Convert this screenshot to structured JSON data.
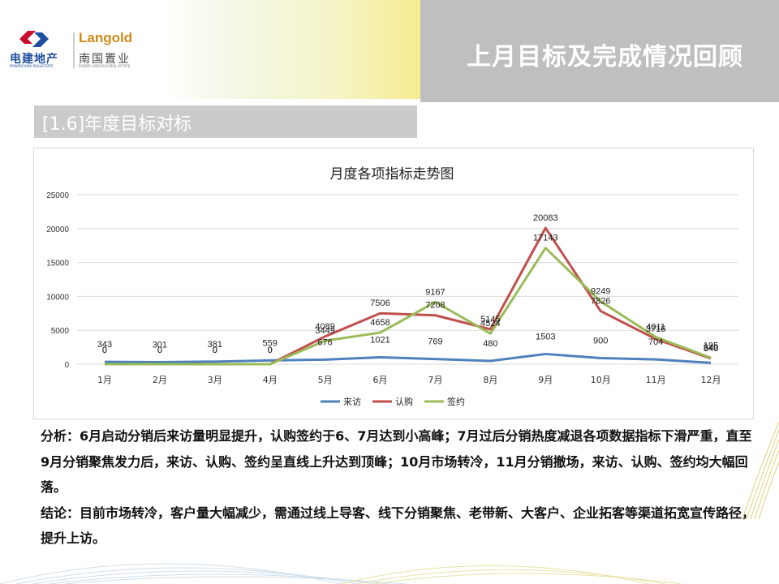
{
  "header": {
    "title": "上月目标及完成情况回顾",
    "logo": {
      "brand_left_cn": "电建地产",
      "brand_left_en": "POWERCHINA REALESTATE",
      "brand_right_en": "Langold",
      "brand_right_cn": "南国置业",
      "brand_right_sub": "POWER LANGOLD REAL ESTATE"
    }
  },
  "section": {
    "title": "[1.6]年度目标对标"
  },
  "chart_data": {
    "type": "line",
    "title": "月度各项指标走势图",
    "xlabel": "",
    "ylabel": "",
    "categories": [
      "1月",
      "2月",
      "3月",
      "4月",
      "5月",
      "6月",
      "7月",
      "8月",
      "9月",
      "10月",
      "11月",
      "12月"
    ],
    "series": [
      {
        "name": "来访",
        "color": "#4f81bd",
        "values": [
          343,
          301,
          381,
          559,
          676,
          1021,
          769,
          480,
          1503,
          900,
          704,
          195
        ]
      },
      {
        "name": "认购",
        "color": "#c0504d",
        "values": [
          0,
          0,
          0,
          0,
          4089,
          7506,
          7208,
          5145,
          20083,
          7826,
          3716,
          840
        ]
      },
      {
        "name": "签约",
        "color": "#9bbb59",
        "values": [
          0,
          0,
          0,
          0,
          3449,
          4658,
          9167,
          4524,
          17143,
          9249,
          4011,
          940
        ]
      }
    ],
    "ylim": [
      0,
      25000
    ],
    "yticks": [
      0,
      5000,
      10000,
      15000,
      20000,
      25000
    ],
    "grid": true,
    "legend_position": "bottom"
  },
  "analysis": {
    "para1": "分析：6月启动分销后来访量明显提升，认购签约于6、7月达到小高峰；7月过后分销热度减退各项数据指标下滑严重，直至9月分销聚焦发力后，来访、认购、签约呈直线上升达到顶峰；10月市场转冷，11月分销撤场，来访、认购、签约均大幅回落。",
    "para2": "结论：目前市场转冷，客户量大幅减少，需通过线上导客、线下分销聚焦、老带新、大客户、企业拓客等渠道拓宽宣传路径，提升上访。"
  }
}
